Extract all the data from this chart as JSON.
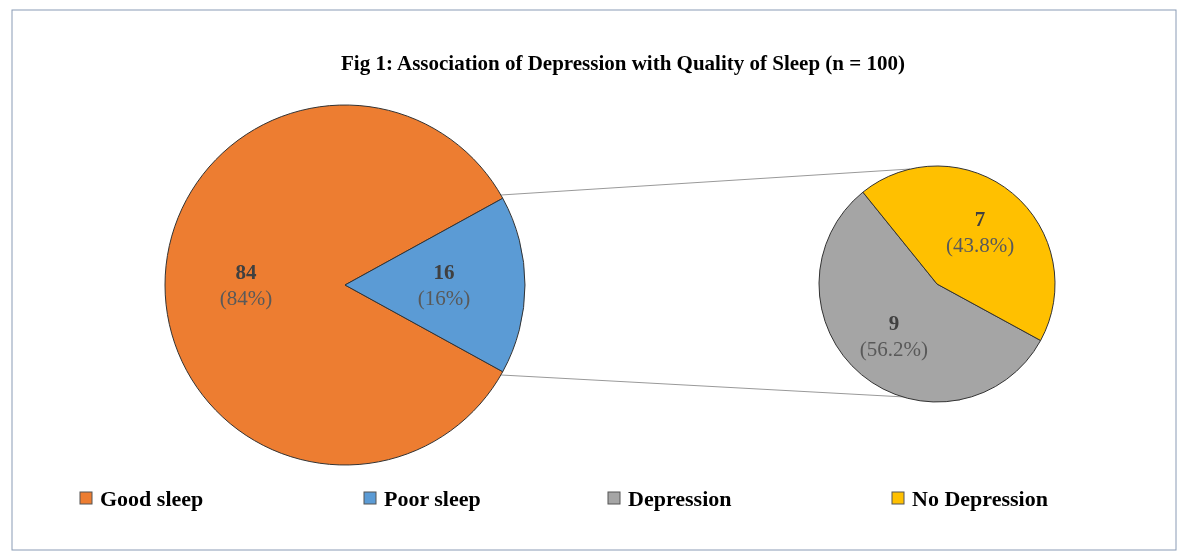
{
  "chart_data": [
    {
      "type": "pie",
      "title": "Fig 1: Association of Depression with Quality of Sleep (n = 100)",
      "categories": [
        "Good sleep",
        "Poor sleep"
      ],
      "values": [
        84,
        16
      ],
      "colors": [
        "#ed7d31",
        "#5b9bd5"
      ],
      "value_labels": [
        "84 (84%)",
        "16 (16%)"
      ],
      "legend": "bottom"
    },
    {
      "type": "pie",
      "categories": [
        "Depression",
        "No Depression"
      ],
      "values": [
        9,
        7
      ],
      "colors": [
        "#a5a5a5",
        "#ffc000"
      ],
      "value_labels": [
        "9 (56.2%)",
        "7 (43.8%)"
      ],
      "legend": "bottom"
    }
  ]
}
